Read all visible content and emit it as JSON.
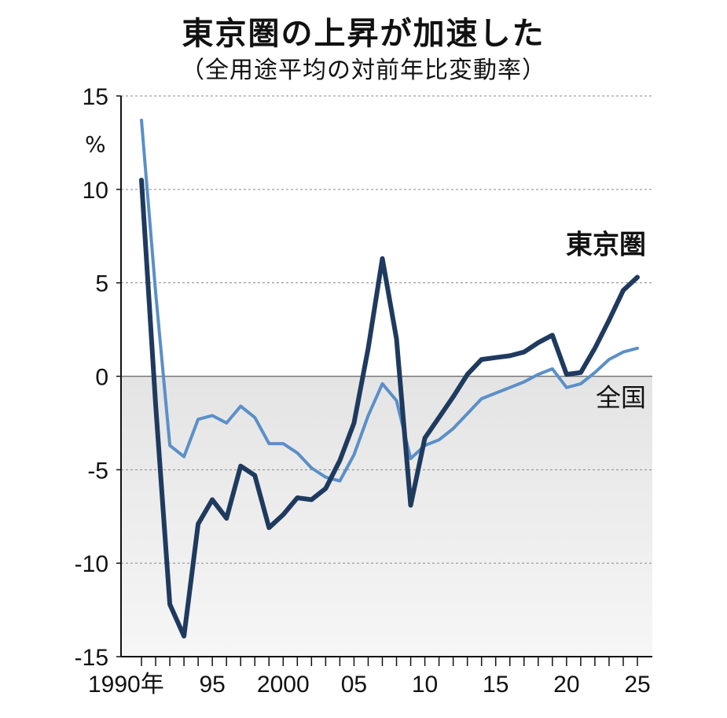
{
  "header": {
    "title": "東京圏の上昇が加速した",
    "subtitle": "（全用途平均の対前年比変動率）"
  },
  "colors": {
    "tokyo": "#1f3a5f",
    "zenkoku": "#5b8fc7",
    "grid": "#888888",
    "shade": "#e4e4e4"
  },
  "chart_data": {
    "type": "line",
    "title": "東京圏の上昇が加速した",
    "subtitle": "（全用途平均の対前年比変動率）",
    "ylabel": "%",
    "ylim": [
      -15,
      15
    ],
    "yticks": [
      15,
      10,
      5,
      0,
      -5,
      -10,
      -15
    ],
    "ytick_labels": [
      "15",
      "10",
      "5",
      "0",
      "-5",
      "-10",
      "-15"
    ],
    "xlim": [
      1990,
      2025
    ],
    "xticks": [
      1990,
      1995,
      2000,
      2005,
      2010,
      2015,
      2020,
      2025
    ],
    "xtick_labels": [
      "1990年",
      "95",
      "2000",
      "05",
      "10",
      "15",
      "20",
      "25"
    ],
    "grid": true,
    "negative_region_shaded": true,
    "x": [
      1990,
      1991,
      1992,
      1993,
      1994,
      1995,
      1996,
      1997,
      1998,
      1999,
      2000,
      2001,
      2002,
      2003,
      2004,
      2005,
      2006,
      2007,
      2008,
      2009,
      2010,
      2011,
      2012,
      2013,
      2014,
      2015,
      2016,
      2017,
      2018,
      2019,
      2020,
      2021,
      2022,
      2023,
      2024,
      2025
    ],
    "series": [
      {
        "name": "東京圏",
        "color": "#1f3a5f",
        "values": [
          10.5,
          -1.5,
          -12.2,
          -13.9,
          -7.9,
          -6.6,
          -7.6,
          -4.8,
          -5.3,
          -8.1,
          -7.4,
          -6.5,
          -6.6,
          -6.0,
          -4.5,
          -2.5,
          1.5,
          6.3,
          2.0,
          -6.9,
          -3.3,
          -2.2,
          -1.1,
          0.1,
          0.9,
          1.0,
          1.1,
          1.3,
          1.8,
          2.2,
          0.1,
          0.2,
          1.5,
          3.0,
          4.6,
          5.3
        ]
      },
      {
        "name": "全国",
        "color": "#5b8fc7",
        "values": [
          13.7,
          4.5,
          -3.7,
          -4.3,
          -2.3,
          -2.1,
          -2.5,
          -1.6,
          -2.2,
          -3.6,
          -3.6,
          -4.1,
          -4.9,
          -5.4,
          -5.6,
          -4.2,
          -2.1,
          -0.4,
          -1.3,
          -4.4,
          -3.7,
          -3.4,
          -2.8,
          -2.0,
          -1.2,
          -0.9,
          -0.6,
          -0.3,
          0.1,
          0.4,
          -0.6,
          -0.4,
          0.2,
          0.9,
          1.3,
          1.5
        ]
      }
    ],
    "series_labels": [
      "東京圏",
      "全国"
    ]
  }
}
